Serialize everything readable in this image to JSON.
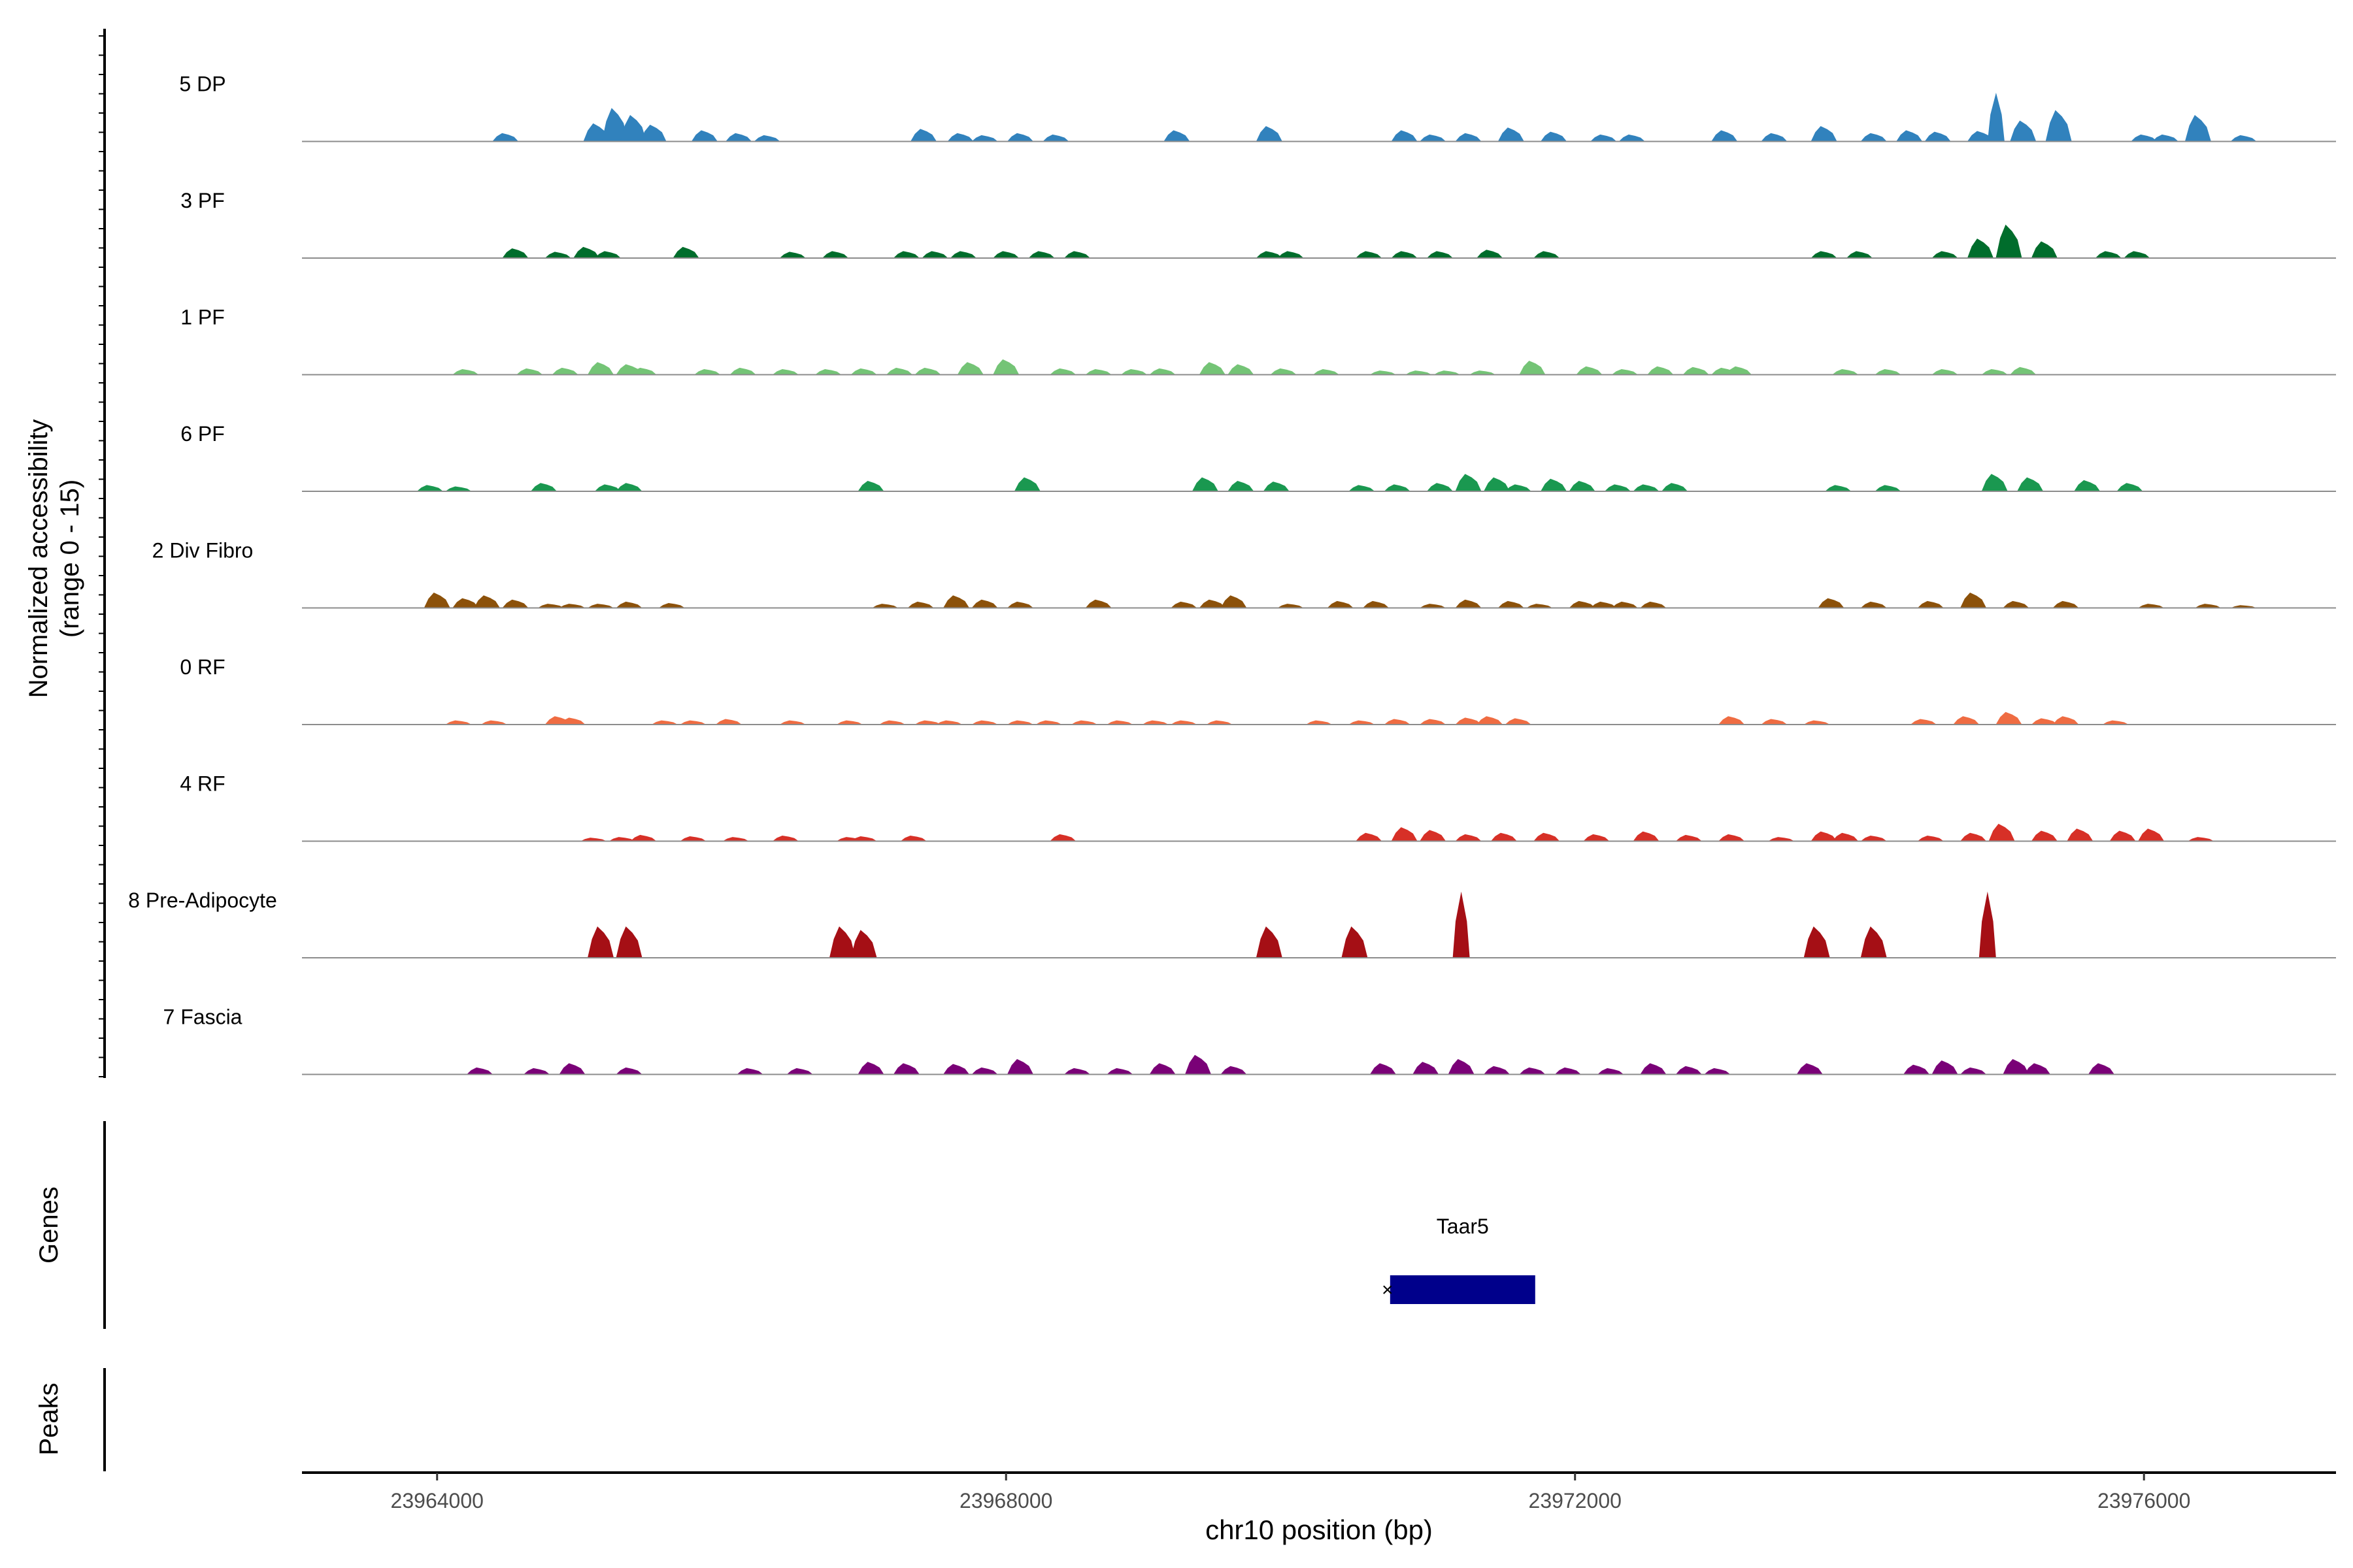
{
  "chart_data": {
    "type": "area",
    "title": "",
    "ylabel_line1": "Normalized accessibility",
    "ylabel_line2": "(range 0 - 15)",
    "xlabel": "chr10 position (bp)",
    "xlim": [
      23963050,
      23977350
    ],
    "ylim": [
      0,
      15
    ],
    "xticks": [
      23964000,
      23968000,
      23972000,
      23976000
    ],
    "xtick_labels": [
      "23964000",
      "23968000",
      "23972000",
      "23976000"
    ],
    "genes_label": "Genes",
    "peaks_label": "Peaks",
    "gene": {
      "name": "Taar5",
      "start": 23970700,
      "end": 23971720,
      "strand": "-",
      "color": "#00008b"
    },
    "series": [
      {
        "name": "5 DP",
        "color": "#3182bd",
        "peaks": [
          [
            23964480,
            1.2
          ],
          [
            23965120,
            2.6
          ],
          [
            23965250,
            4.8
          ],
          [
            23965380,
            3.8
          ],
          [
            23965520,
            2.4
          ],
          [
            23965880,
            1.6
          ],
          [
            23966120,
            1.2
          ],
          [
            23966320,
            0.9
          ],
          [
            23967420,
            1.8
          ],
          [
            23967680,
            1.2
          ],
          [
            23967850,
            0.9
          ],
          [
            23968100,
            1.2
          ],
          [
            23968350,
            1.0
          ],
          [
            23969200,
            1.6
          ],
          [
            23969850,
            2.2
          ],
          [
            23970800,
            1.6
          ],
          [
            23971000,
            1.0
          ],
          [
            23971250,
            1.2
          ],
          [
            23971550,
            2.0
          ],
          [
            23971850,
            1.4
          ],
          [
            23972200,
            1.0
          ],
          [
            23972400,
            1.0
          ],
          [
            23973050,
            1.6
          ],
          [
            23973400,
            1.2
          ],
          [
            23973750,
            2.2
          ],
          [
            23974100,
            1.2
          ],
          [
            23974350,
            1.6
          ],
          [
            23974550,
            1.4
          ],
          [
            23974850,
            1.5
          ],
          [
            23974960,
            7.0
          ],
          [
            23975150,
            3.0
          ],
          [
            23975400,
            4.5
          ],
          [
            23976000,
            1.0
          ],
          [
            23976150,
            1.0
          ],
          [
            23976380,
            3.8
          ],
          [
            23976700,
            0.9
          ]
        ]
      },
      {
        "name": "3 PF",
        "color": "#006d2c",
        "peaks": [
          [
            23964550,
            1.4
          ],
          [
            23964850,
            0.9
          ],
          [
            23965050,
            1.6
          ],
          [
            23965200,
            1.0
          ],
          [
            23965750,
            1.6
          ],
          [
            23966500,
            0.9
          ],
          [
            23966800,
            1.0
          ],
          [
            23967300,
            1.0
          ],
          [
            23967500,
            1.0
          ],
          [
            23967700,
            1.0
          ],
          [
            23968000,
            1.0
          ],
          [
            23968250,
            1.0
          ],
          [
            23968500,
            1.0
          ],
          [
            23969850,
            1.0
          ],
          [
            23970000,
            1.0
          ],
          [
            23970550,
            1.0
          ],
          [
            23970800,
            1.0
          ],
          [
            23971050,
            1.0
          ],
          [
            23971400,
            1.2
          ],
          [
            23971800,
            1.0
          ],
          [
            23973750,
            1.0
          ],
          [
            23974000,
            1.0
          ],
          [
            23974600,
            1.0
          ],
          [
            23974850,
            2.8
          ],
          [
            23975050,
            4.8
          ],
          [
            23975300,
            2.4
          ],
          [
            23975750,
            1.0
          ],
          [
            23975950,
            1.0
          ]
        ]
      },
      {
        "name": "1 PF",
        "color": "#74c476",
        "peaks": [
          [
            23964200,
            0.8
          ],
          [
            23964650,
            0.9
          ],
          [
            23964900,
            1.0
          ],
          [
            23965150,
            1.8
          ],
          [
            23965350,
            1.5
          ],
          [
            23965450,
            1.0
          ],
          [
            23965900,
            0.8
          ],
          [
            23966150,
            1.0
          ],
          [
            23966450,
            0.8
          ],
          [
            23966750,
            0.8
          ],
          [
            23967000,
            0.9
          ],
          [
            23967250,
            1.0
          ],
          [
            23967450,
            1.0
          ],
          [
            23967750,
            1.8
          ],
          [
            23968000,
            2.2
          ],
          [
            23968400,
            0.9
          ],
          [
            23968650,
            0.8
          ],
          [
            23968900,
            0.8
          ],
          [
            23969100,
            0.9
          ],
          [
            23969450,
            1.8
          ],
          [
            23969650,
            1.5
          ],
          [
            23969950,
            0.9
          ],
          [
            23970250,
            0.8
          ],
          [
            23970650,
            0.6
          ],
          [
            23970900,
            0.6
          ],
          [
            23971100,
            0.6
          ],
          [
            23971350,
            0.6
          ],
          [
            23971700,
            2.0
          ],
          [
            23972100,
            1.2
          ],
          [
            23972350,
            0.8
          ],
          [
            23972600,
            1.2
          ],
          [
            23972850,
            1.1
          ],
          [
            23973050,
            1.0
          ],
          [
            23973150,
            1.2
          ],
          [
            23973900,
            0.8
          ],
          [
            23974200,
            0.8
          ],
          [
            23974600,
            0.8
          ],
          [
            23974950,
            0.8
          ],
          [
            23975150,
            1.1
          ]
        ]
      },
      {
        "name": "6 PF",
        "color": "#1a9850",
        "peaks": [
          [
            23963950,
            0.9
          ],
          [
            23964150,
            0.7
          ],
          [
            23964750,
            1.2
          ],
          [
            23965200,
            1.0
          ],
          [
            23965350,
            1.2
          ],
          [
            23967050,
            1.5
          ],
          [
            23968150,
            2.0
          ],
          [
            23969400,
            2.0
          ],
          [
            23969650,
            1.5
          ],
          [
            23969900,
            1.4
          ],
          [
            23970500,
            0.9
          ],
          [
            23970750,
            1.0
          ],
          [
            23971050,
            1.2
          ],
          [
            23971250,
            2.5
          ],
          [
            23971450,
            2.0
          ],
          [
            23971600,
            1.0
          ],
          [
            23971850,
            1.8
          ],
          [
            23972050,
            1.5
          ],
          [
            23972300,
            1.0
          ],
          [
            23972500,
            1.0
          ],
          [
            23972700,
            1.2
          ],
          [
            23973850,
            0.9
          ],
          [
            23974200,
            0.9
          ],
          [
            23974950,
            2.5
          ],
          [
            23975200,
            2.0
          ],
          [
            23975600,
            1.6
          ],
          [
            23975900,
            1.2
          ]
        ]
      },
      {
        "name": "2 Div Fibro",
        "color": "#8c510a",
        "peaks": [
          [
            23964000,
            2.2
          ],
          [
            23964200,
            1.4
          ],
          [
            23964350,
            1.8
          ],
          [
            23964550,
            1.2
          ],
          [
            23964800,
            0.6
          ],
          [
            23964950,
            0.6
          ],
          [
            23965150,
            0.6
          ],
          [
            23965350,
            0.9
          ],
          [
            23965650,
            0.7
          ],
          [
            23967150,
            0.6
          ],
          [
            23967400,
            0.9
          ],
          [
            23967650,
            1.8
          ],
          [
            23967850,
            1.2
          ],
          [
            23968100,
            0.9
          ],
          [
            23968650,
            1.2
          ],
          [
            23969250,
            0.9
          ],
          [
            23969450,
            1.2
          ],
          [
            23969600,
            1.8
          ],
          [
            23970000,
            0.6
          ],
          [
            23970350,
            1.0
          ],
          [
            23970600,
            1.0
          ],
          [
            23971000,
            0.6
          ],
          [
            23971250,
            1.2
          ],
          [
            23971550,
            1.0
          ],
          [
            23971750,
            0.6
          ],
          [
            23972050,
            1.0
          ],
          [
            23972200,
            0.9
          ],
          [
            23972350,
            0.9
          ],
          [
            23972550,
            0.9
          ],
          [
            23973800,
            1.4
          ],
          [
            23974100,
            0.9
          ],
          [
            23974500,
            1.0
          ],
          [
            23974800,
            2.2
          ],
          [
            23975100,
            1.0
          ],
          [
            23975450,
            1.0
          ],
          [
            23976050,
            0.6
          ],
          [
            23976450,
            0.6
          ],
          [
            23976700,
            0.4
          ]
        ]
      },
      {
        "name": "0 RF",
        "color": "#ef6c42",
        "peaks": [
          [
            23964150,
            0.6
          ],
          [
            23964400,
            0.6
          ],
          [
            23964850,
            1.2
          ],
          [
            23964950,
            1.0
          ],
          [
            23965600,
            0.6
          ],
          [
            23965800,
            0.6
          ],
          [
            23966050,
            0.8
          ],
          [
            23966500,
            0.6
          ],
          [
            23966900,
            0.6
          ],
          [
            23967200,
            0.6
          ],
          [
            23967450,
            0.6
          ],
          [
            23967600,
            0.6
          ],
          [
            23967850,
            0.6
          ],
          [
            23968100,
            0.6
          ],
          [
            23968300,
            0.6
          ],
          [
            23968550,
            0.6
          ],
          [
            23968800,
            0.6
          ],
          [
            23969050,
            0.6
          ],
          [
            23969250,
            0.6
          ],
          [
            23969500,
            0.6
          ],
          [
            23970200,
            0.6
          ],
          [
            23970500,
            0.6
          ],
          [
            23970750,
            0.8
          ],
          [
            23971000,
            0.8
          ],
          [
            23971250,
            1.0
          ],
          [
            23971400,
            1.2
          ],
          [
            23971600,
            0.9
          ],
          [
            23973100,
            1.2
          ],
          [
            23973400,
            0.8
          ],
          [
            23973700,
            0.6
          ],
          [
            23974450,
            0.8
          ],
          [
            23974750,
            1.2
          ],
          [
            23975050,
            1.8
          ],
          [
            23975300,
            0.9
          ],
          [
            23975450,
            1.2
          ],
          [
            23975800,
            0.6
          ]
        ]
      },
      {
        "name": "4 RF",
        "color": "#d73027",
        "peaks": [
          [
            23965100,
            0.5
          ],
          [
            23965300,
            0.6
          ],
          [
            23965450,
            0.9
          ],
          [
            23965800,
            0.7
          ],
          [
            23966100,
            0.6
          ],
          [
            23966450,
            0.8
          ],
          [
            23966900,
            0.6
          ],
          [
            23967000,
            0.7
          ],
          [
            23967350,
            0.8
          ],
          [
            23968400,
            1.0
          ],
          [
            23970550,
            1.2
          ],
          [
            23970800,
            2.0
          ],
          [
            23971000,
            1.6
          ],
          [
            23971250,
            1.0
          ],
          [
            23971500,
            1.2
          ],
          [
            23971800,
            1.2
          ],
          [
            23972150,
            1.0
          ],
          [
            23972500,
            1.4
          ],
          [
            23972800,
            0.9
          ],
          [
            23973100,
            1.0
          ],
          [
            23973450,
            0.6
          ],
          [
            23973750,
            1.4
          ],
          [
            23973900,
            1.2
          ],
          [
            23974100,
            0.8
          ],
          [
            23974500,
            0.8
          ],
          [
            23974800,
            1.2
          ],
          [
            23975000,
            2.5
          ],
          [
            23975300,
            1.5
          ],
          [
            23975550,
            1.8
          ],
          [
            23975850,
            1.5
          ],
          [
            23976050,
            1.8
          ],
          [
            23976400,
            0.6
          ]
        ]
      },
      {
        "name": "8 Pre-Adipocyte",
        "color": "#a50f15",
        "peaks": [
          [
            23965150,
            4.5
          ],
          [
            23965350,
            4.5
          ],
          [
            23966850,
            4.5
          ],
          [
            23967000,
            4.0
          ],
          [
            23969850,
            4.5
          ],
          [
            23970450,
            4.5
          ],
          [
            23971200,
            9.5
          ],
          [
            23973700,
            4.5
          ],
          [
            23974100,
            4.5
          ],
          [
            23974900,
            9.5
          ]
        ]
      },
      {
        "name": "7 Fascia",
        "color": "#7a0177",
        "peaks": [
          [
            23964300,
            1.0
          ],
          [
            23964700,
            0.9
          ],
          [
            23964950,
            1.6
          ],
          [
            23965350,
            1.0
          ],
          [
            23966200,
            0.9
          ],
          [
            23966550,
            0.9
          ],
          [
            23967050,
            1.8
          ],
          [
            23967300,
            1.6
          ],
          [
            23967650,
            1.5
          ],
          [
            23967850,
            1.0
          ],
          [
            23968100,
            2.2
          ],
          [
            23968500,
            0.9
          ],
          [
            23968800,
            0.9
          ],
          [
            23969100,
            1.6
          ],
          [
            23969350,
            2.8
          ],
          [
            23969600,
            1.2
          ],
          [
            23970650,
            1.6
          ],
          [
            23970950,
            1.8
          ],
          [
            23971200,
            2.2
          ],
          [
            23971450,
            1.2
          ],
          [
            23971700,
            1.0
          ],
          [
            23971950,
            1.0
          ],
          [
            23972250,
            0.9
          ],
          [
            23972550,
            1.6
          ],
          [
            23972800,
            1.2
          ],
          [
            23973000,
            0.9
          ],
          [
            23973650,
            1.6
          ],
          [
            23974400,
            1.4
          ],
          [
            23974600,
            2.0
          ],
          [
            23974800,
            1.0
          ],
          [
            23975100,
            2.2
          ],
          [
            23975250,
            1.6
          ],
          [
            23975700,
            1.6
          ]
        ]
      }
    ]
  }
}
